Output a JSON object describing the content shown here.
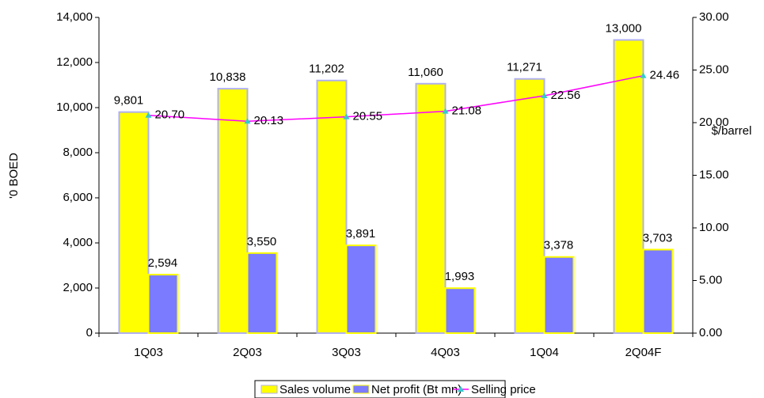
{
  "chart_data": {
    "type": "bar-line",
    "categories": [
      "1Q03",
      "2Q03",
      "3Q03",
      "4Q03",
      "1Q04",
      "2Q04F"
    ],
    "ylabel": "'0 BOED",
    "y2label": "$/barrel",
    "ylim": [
      0,
      14000
    ],
    "yticks": [
      0,
      {
        "value": 2000,
        "label": "2,000"
      },
      {
        "value": 4000,
        "label": "4,000"
      },
      {
        "value": 6000,
        "label": "6,000"
      },
      {
        "value": 8000,
        "label": "8,000"
      },
      {
        "value": 10000,
        "label": "10,000"
      },
      {
        "value": 12000,
        "label": "12,000"
      },
      {
        "value": 14000,
        "label": "14,000"
      }
    ],
    "y2lim": [
      0,
      30
    ],
    "y2ticks": [
      {
        "value": 0,
        "label": "0.00"
      },
      {
        "value": 5,
        "label": "5.00"
      },
      {
        "value": 10,
        "label": "10.00"
      },
      {
        "value": 15,
        "label": "15.00"
      },
      {
        "value": 20,
        "label": "20.00"
      },
      {
        "value": 25,
        "label": "25.00"
      },
      {
        "value": 30,
        "label": "30.00"
      }
    ],
    "legend": "bottom",
    "series": [
      {
        "name": "Sales volume",
        "type": "bar",
        "color": "#ffff00",
        "values": [
          9801,
          10838,
          11202,
          11060,
          11271,
          13000
        ],
        "value_labels": [
          "9,801",
          "10,838",
          "11,202",
          "11,060",
          "11,271",
          "13,000"
        ]
      },
      {
        "name": "Net profit (Bt mn)",
        "type": "bar",
        "color": "#7b7bff",
        "values": [
          2594,
          3550,
          3891,
          1993,
          3378,
          3703
        ],
        "value_labels": [
          "2,594",
          "3,550",
          "3,891",
          "1,993",
          "3,378",
          "3,703"
        ]
      },
      {
        "name": "Selling price",
        "type": "line",
        "axis": "y2",
        "color": "#ff00ff",
        "marker_color": "#33cccc",
        "values": [
          20.7,
          20.13,
          20.55,
          21.08,
          22.56,
          24.46
        ],
        "value_labels": [
          "20.70",
          "20.13",
          "20.55",
          "21.08",
          "22.56",
          "24.46"
        ]
      }
    ]
  }
}
